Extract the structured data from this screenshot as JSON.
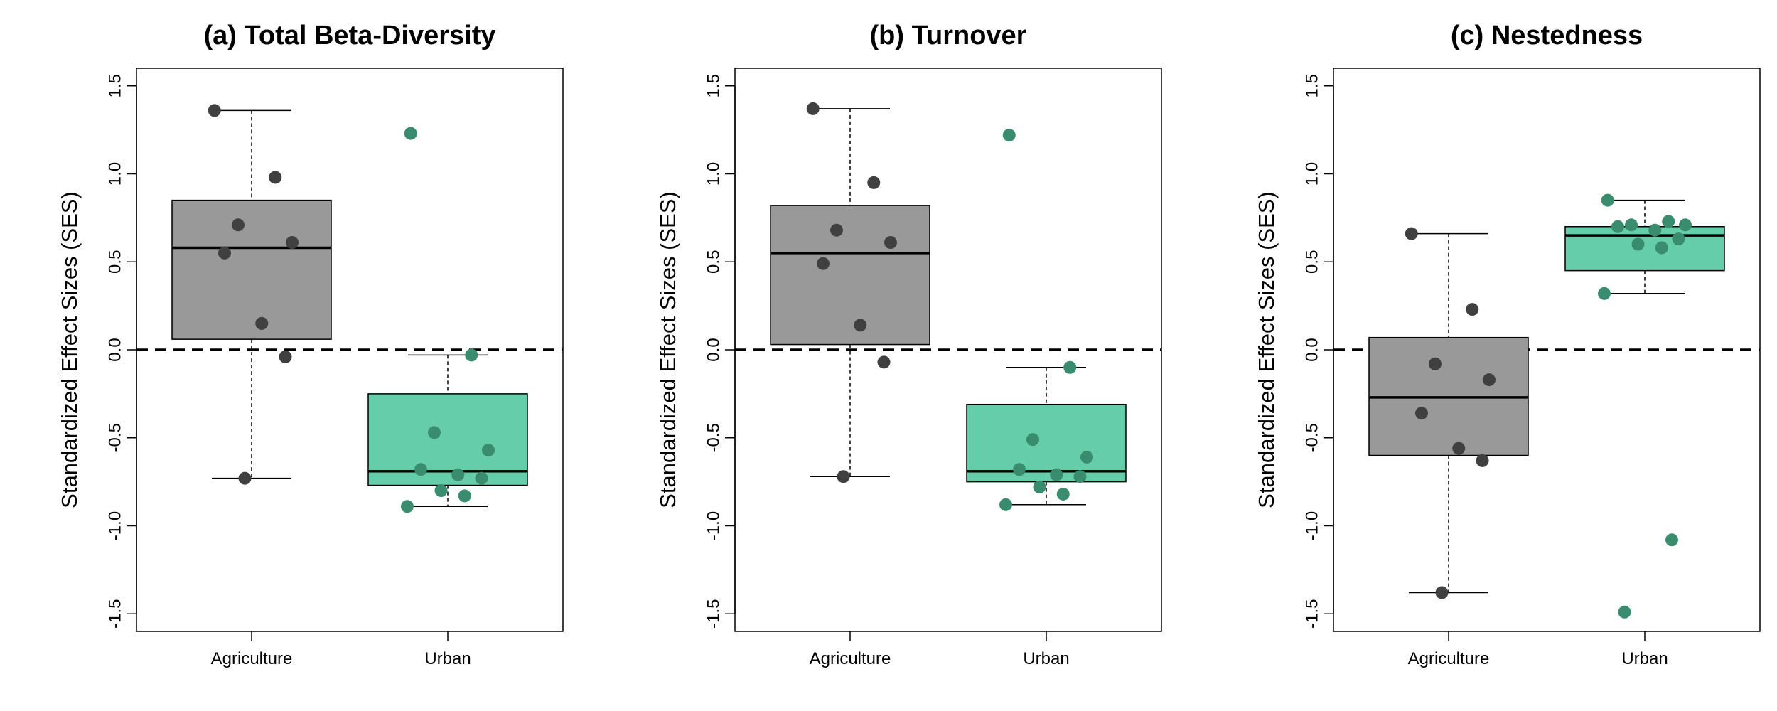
{
  "chart_data": [
    {
      "type": "boxplot",
      "title": "(a) Total Beta-Diversity",
      "ylabel": "Standardized Effect Sizes (SES)",
      "xlabel": "",
      "categories": [
        "Agriculture",
        "Urban"
      ],
      "ylim": [
        -1.6,
        1.6
      ],
      "yticks": [
        -1.5,
        -1.0,
        -0.5,
        0.0,
        0.5,
        1.0,
        1.5
      ],
      "yticklabels": [
        "-1.5",
        "-1.0",
        "-0.5",
        "0.0",
        "0.5",
        "1.0",
        "1.5"
      ],
      "reference_line": 0.0,
      "groups": [
        {
          "name": "Agriculture",
          "color": "#999999",
          "point_color": "#404040",
          "q1": 0.06,
          "median": 0.58,
          "q3": 0.85,
          "whisker_low": -0.73,
          "whisker_high": 1.36,
          "points": [
            1.36,
            0.98,
            0.71,
            0.61,
            0.55,
            0.15,
            -0.04,
            -0.73
          ]
        },
        {
          "name": "Urban",
          "color": "#66CDAA",
          "point_color": "#3A8C6E",
          "q1": -0.77,
          "median": -0.69,
          "q3": -0.25,
          "whisker_low": -0.89,
          "whisker_high": -0.03,
          "points": [
            1.23,
            -0.03,
            -0.47,
            -0.57,
            -0.68,
            -0.71,
            -0.73,
            -0.8,
            -0.83,
            -0.89
          ]
        }
      ]
    },
    {
      "type": "boxplot",
      "title": "(b) Turnover",
      "ylabel": "Standardized Effect Sizes (SES)",
      "xlabel": "",
      "categories": [
        "Agriculture",
        "Urban"
      ],
      "ylim": [
        -1.6,
        1.6
      ],
      "yticks": [
        -1.5,
        -1.0,
        -0.5,
        0.0,
        0.5,
        1.0,
        1.5
      ],
      "yticklabels": [
        "-1.5",
        "-1.0",
        "-0.5",
        "0.0",
        "0.5",
        "1.0",
        "1.5"
      ],
      "reference_line": 0.0,
      "groups": [
        {
          "name": "Agriculture",
          "color": "#999999",
          "point_color": "#404040",
          "q1": 0.03,
          "median": 0.55,
          "q3": 0.82,
          "whisker_low": -0.72,
          "whisker_high": 1.37,
          "points": [
            1.37,
            0.95,
            0.68,
            0.61,
            0.49,
            0.14,
            -0.07,
            -0.72
          ]
        },
        {
          "name": "Urban",
          "color": "#66CDAA",
          "point_color": "#3A8C6E",
          "q1": -0.75,
          "median": -0.69,
          "q3": -0.31,
          "whisker_low": -0.88,
          "whisker_high": -0.1,
          "points": [
            1.22,
            -0.1,
            -0.51,
            -0.61,
            -0.68,
            -0.71,
            -0.72,
            -0.78,
            -0.82,
            -0.88
          ]
        }
      ]
    },
    {
      "type": "boxplot",
      "title": "(c) Nestedness",
      "ylabel": "Standardized Effect Sizes (SES)",
      "xlabel": "",
      "categories": [
        "Agriculture",
        "Urban"
      ],
      "ylim": [
        -1.6,
        1.6
      ],
      "yticks": [
        -1.5,
        -1.0,
        -0.5,
        0.0,
        0.5,
        1.0,
        1.5
      ],
      "yticklabels": [
        "-1.5",
        "-1.0",
        "-0.5",
        "0.0",
        "0.5",
        "1.0",
        "1.5"
      ],
      "reference_line": 0.0,
      "groups": [
        {
          "name": "Agriculture",
          "color": "#999999",
          "point_color": "#404040",
          "q1": -0.6,
          "median": -0.27,
          "q3": 0.07,
          "whisker_low": -1.38,
          "whisker_high": 0.66,
          "points": [
            0.66,
            0.23,
            -0.08,
            -0.17,
            -0.36,
            -0.56,
            -0.63,
            -1.38
          ]
        },
        {
          "name": "Urban",
          "color": "#66CDAA",
          "point_color": "#3A8C6E",
          "q1": 0.45,
          "median": 0.65,
          "q3": 0.7,
          "whisker_low": 0.32,
          "whisker_high": 0.85,
          "points": [
            0.85,
            0.73,
            0.71,
            0.71,
            0.7,
            0.68,
            0.63,
            0.6,
            0.58,
            0.32,
            -1.08,
            -1.49
          ]
        }
      ]
    }
  ]
}
